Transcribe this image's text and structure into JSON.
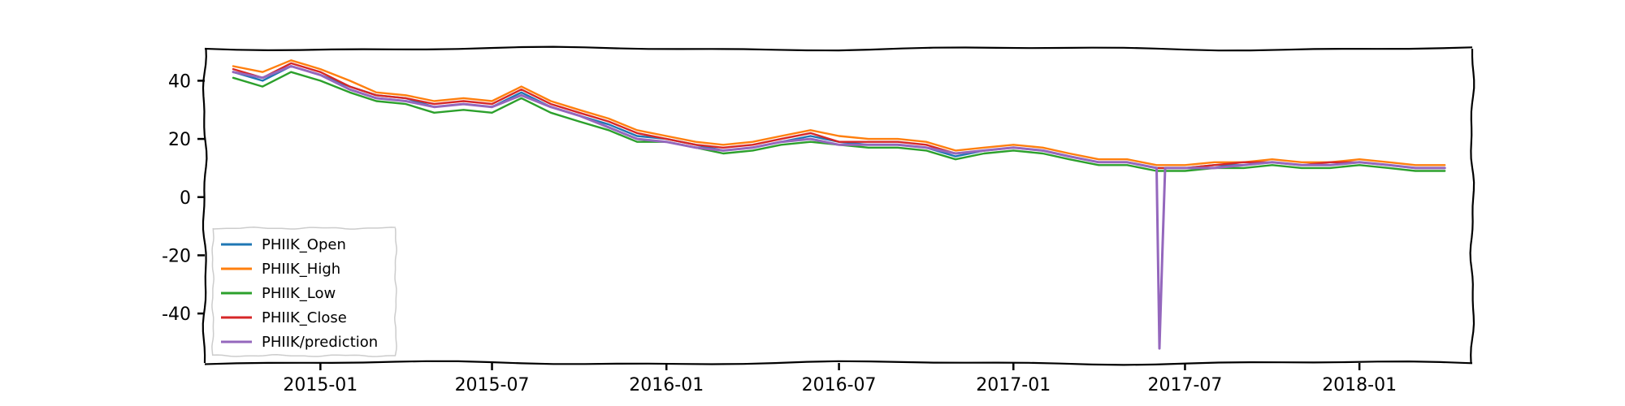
{
  "chart_data": {
    "type": "line",
    "title": "",
    "xlabel": "",
    "ylabel": "",
    "x_range": [
      "2014-09-01",
      "2018-04-30"
    ],
    "ylim": [
      -57,
      51
    ],
    "x_ticks": [
      "2015-01",
      "2015-07",
      "2016-01",
      "2016-07",
      "2017-01",
      "2017-07",
      "2018-01"
    ],
    "y_ticks": [
      40,
      20,
      0,
      -20,
      -40
    ],
    "y_tick_labels": [
      "40",
      "20",
      "0",
      "-20",
      "-40"
    ],
    "grid": false,
    "legend_position": "lower-left",
    "style": "xkcd",
    "x": [
      "2014-10-01",
      "2014-11-01",
      "2014-12-01",
      "2015-01-01",
      "2015-02-01",
      "2015-03-01",
      "2015-04-01",
      "2015-05-01",
      "2015-06-01",
      "2015-07-01",
      "2015-08-01",
      "2015-09-01",
      "2015-10-01",
      "2015-11-01",
      "2015-12-01",
      "2016-01-01",
      "2016-02-01",
      "2016-03-01",
      "2016-04-01",
      "2016-05-01",
      "2016-06-01",
      "2016-07-01",
      "2016-08-01",
      "2016-09-01",
      "2016-10-01",
      "2016-11-01",
      "2016-12-01",
      "2017-01-01",
      "2017-02-01",
      "2017-03-01",
      "2017-04-01",
      "2017-05-01",
      "2017-06-01",
      "2017-06-04",
      "2017-06-07",
      "2017-06-10",
      "2017-07-01",
      "2017-08-01",
      "2017-09-01",
      "2017-10-01",
      "2017-11-01",
      "2017-12-01",
      "2018-01-01",
      "2018-02-01",
      "2018-03-01",
      "2018-04-01"
    ],
    "series": [
      {
        "name": "PHIIK_Open",
        "color": "#1f77b4",
        "values": [
          43,
          40,
          45,
          42,
          38,
          35,
          34,
          31,
          32,
          31,
          36,
          31,
          28,
          25,
          21,
          20,
          18,
          16,
          17,
          19,
          21,
          19,
          18,
          18,
          17,
          14,
          16,
          17,
          16,
          14,
          12,
          12,
          10,
          10,
          10,
          10,
          10,
          11,
          11,
          12,
          11,
          11,
          12,
          11,
          10,
          10
        ]
      },
      {
        "name": "PHIIK_High",
        "color": "#ff7f0e",
        "values": [
          45,
          43,
          47,
          44,
          40,
          36,
          35,
          33,
          34,
          33,
          38,
          33,
          30,
          27,
          23,
          21,
          19,
          18,
          19,
          21,
          23,
          21,
          20,
          20,
          19,
          16,
          17,
          18,
          17,
          15,
          13,
          13,
          11,
          11,
          11,
          11,
          11,
          12,
          12,
          13,
          12,
          12,
          13,
          12,
          11,
          11
        ]
      },
      {
        "name": "PHIIK_Low",
        "color": "#2ca02c",
        "values": [
          41,
          38,
          43,
          40,
          36,
          33,
          32,
          29,
          30,
          29,
          34,
          29,
          26,
          23,
          19,
          19,
          17,
          15,
          16,
          18,
          19,
          18,
          17,
          17,
          16,
          13,
          15,
          16,
          15,
          13,
          11,
          11,
          9,
          9,
          9,
          9,
          9,
          10,
          10,
          11,
          10,
          10,
          11,
          10,
          9,
          9
        ]
      },
      {
        "name": "PHIIK_Close",
        "color": "#d62728",
        "values": [
          44,
          41,
          46,
          43,
          38,
          35,
          34,
          32,
          33,
          32,
          37,
          32,
          29,
          26,
          22,
          20,
          18,
          17,
          18,
          20,
          22,
          19,
          19,
          19,
          18,
          15,
          16,
          17,
          16,
          14,
          12,
          12,
          10,
          10,
          10,
          10,
          10,
          11,
          12,
          12,
          11,
          12,
          12,
          11,
          10,
          10
        ]
      },
      {
        "name": "PHIIK/prediction",
        "color": "#9467bd",
        "values": [
          43,
          41,
          45,
          42,
          37,
          34,
          33,
          31,
          32,
          31,
          35,
          31,
          28,
          24,
          20,
          19,
          17,
          16,
          17,
          19,
          20,
          18,
          18,
          18,
          17,
          15,
          16,
          17,
          16,
          14,
          12,
          12,
          10,
          -52,
          -20,
          10,
          10,
          10,
          11,
          12,
          11,
          11,
          12,
          11,
          10,
          10
        ]
      }
    ]
  }
}
